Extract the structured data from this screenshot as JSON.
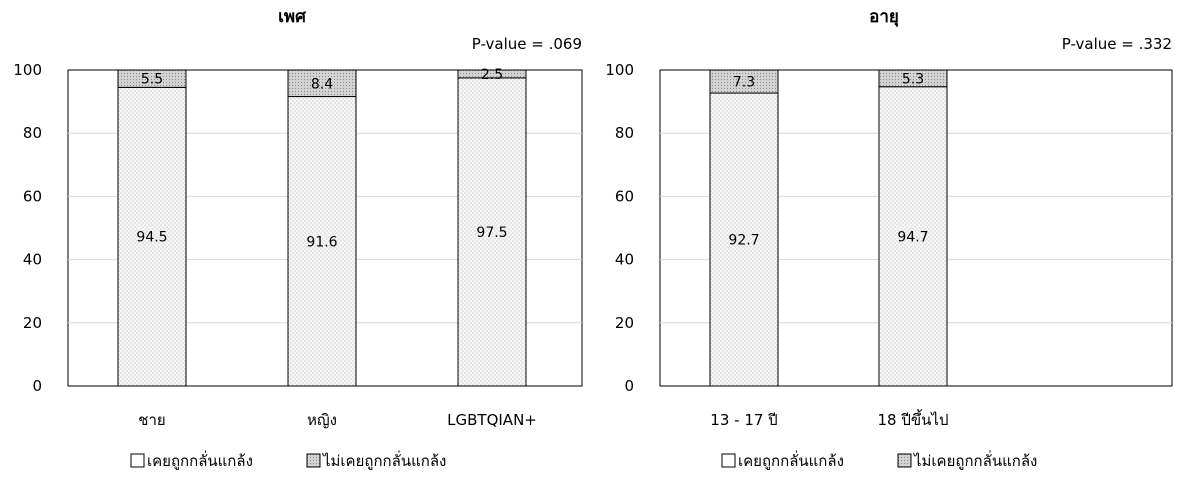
{
  "chart_data": [
    {
      "type": "bar",
      "stacked": true,
      "title": "เพศ",
      "annotation": "P-value = .069",
      "categories": [
        "ชาย",
        "หญิง",
        "LGBTQIAN+"
      ],
      "series": [
        {
          "name": "เคยถูกกลั่นแกล้ง",
          "values": [
            94.5,
            91.6,
            97.5
          ],
          "labels": [
            "94.5",
            "91.6",
            "97.5"
          ],
          "color": "#f4f4f4"
        },
        {
          "name": "ไม่เคยถูกกลั่นแกล้ง",
          "values": [
            5.5,
            8.4,
            2.5
          ],
          "labels": [
            "5.5",
            "8.4",
            "2.5"
          ],
          "color": "#d0d0d0"
        }
      ],
      "ylim": [
        0,
        100
      ],
      "yticks": [
        "0",
        "20",
        "40",
        "60",
        "80",
        "100"
      ],
      "grid": true,
      "legend": "bottom"
    },
    {
      "type": "bar",
      "stacked": true,
      "title": "อายุ",
      "annotation": "P-value = .332",
      "categories": [
        "13 - 17 ปี",
        "18 ปีขึ้นไป"
      ],
      "series": [
        {
          "name": "เคยถูกกลั่นแกล้ง",
          "values": [
            92.7,
            94.7
          ],
          "labels": [
            "92.7",
            "94.7"
          ],
          "color": "#f4f4f4"
        },
        {
          "name": "ไม่เคยถูกกลั่นแกล้ง",
          "values": [
            7.3,
            5.3
          ],
          "labels": [
            "7.3",
            "5.3"
          ],
          "color": "#d0d0d0"
        }
      ],
      "ylim": [
        0,
        100
      ],
      "yticks": [
        "0",
        "20",
        "40",
        "60",
        "80",
        "100"
      ],
      "grid": true,
      "legend": "bottom"
    }
  ]
}
